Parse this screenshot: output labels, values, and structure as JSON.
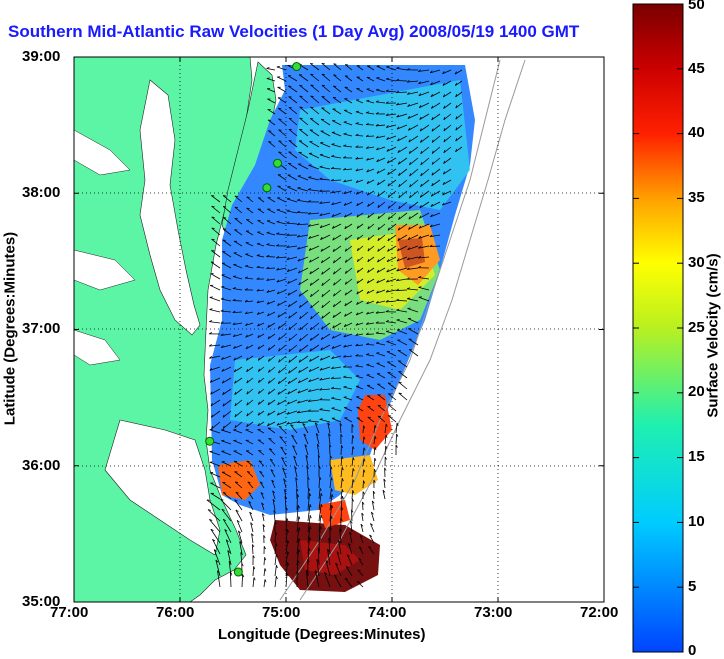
{
  "title": "Southern Mid-Atlantic Raw Velocities (1 Day Avg) 2008/05/19 1400 GMT",
  "map": {
    "xlabel": "Longitude (Degrees:Minutes)",
    "ylabel": "Latitude (Degrees:Minutes)",
    "lon_ticks": [
      "77:00",
      "76:00",
      "75:00",
      "74:00",
      "73:00",
      "72:00"
    ],
    "lat_ticks": [
      "39:00",
      "38:00",
      "37:00",
      "36:00",
      "35:00"
    ],
    "lon_range": [
      -77,
      -72
    ],
    "lat_range": [
      35,
      39
    ],
    "grid": true,
    "land_color": "#5cf5a6",
    "ocean_color": "#ffffff"
  },
  "colorbar": {
    "label": "Surface Velocity (cm/s)",
    "ticks": [
      "0",
      "5",
      "10",
      "15",
      "20",
      "25",
      "30",
      "35",
      "40",
      "45",
      "50"
    ],
    "range": [
      0,
      50
    ]
  },
  "stations": [
    {
      "lon": -74.9,
      "lat": 38.93
    },
    {
      "lon": -75.08,
      "lat": 38.22
    },
    {
      "lon": -75.18,
      "lat": 38.04
    },
    {
      "lon": -75.72,
      "lat": 36.18
    },
    {
      "lon": -75.45,
      "lat": 35.22
    }
  ]
}
